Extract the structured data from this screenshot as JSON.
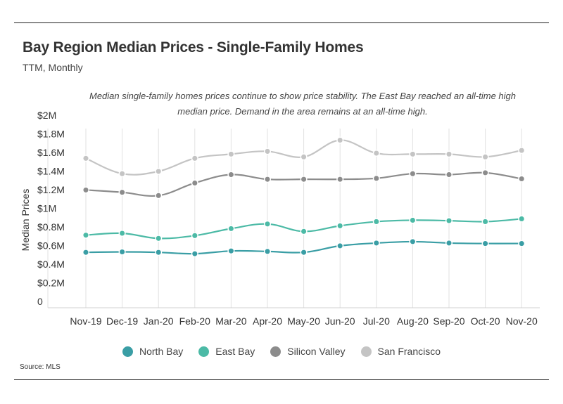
{
  "header": {
    "title": "Bay Region Median Prices - Single-Family Homes",
    "subtitle": "TTM, Monthly"
  },
  "annotation": "Median single-family homes prices continue to show price stability. The East Bay reached an all-time high median price. Demand in the area remains at an all-time high.",
  "source": "Source:  MLS",
  "chart_data": {
    "type": "line",
    "title": "Bay Region Median Prices - Single-Family Homes",
    "subtitle": "TTM, Monthly",
    "xlabel": "",
    "ylabel": "Median Prices",
    "ylim": [
      0,
      2000000
    ],
    "yticks": [
      0,
      200000,
      400000,
      600000,
      800000,
      1000000,
      1200000,
      1400000,
      1600000,
      1800000,
      2000000
    ],
    "ytick_labels": [
      "0",
      "$0.2M",
      "$0.4M",
      "$0.6M",
      "$0.8M",
      "$1M",
      "$1.2M",
      "$1.4M",
      "$1.6M",
      "$1.8M",
      "$2M"
    ],
    "x": [
      "Nov-19",
      "Dec-19",
      "Jan-20",
      "Feb-20",
      "Mar-20",
      "Apr-20",
      "May-20",
      "Jun-20",
      "Jul-20",
      "Aug-20",
      "Sep-20",
      "Oct-20",
      "Nov-20"
    ],
    "grid": "vertical",
    "legend_position": "bottom",
    "series": [
      {
        "name": "North Bay",
        "color": "#3a9ea5",
        "values": [
          595000,
          600000,
          595000,
          580000,
          610000,
          605000,
          595000,
          665000,
          695000,
          710000,
          695000,
          690000,
          690000
        ]
      },
      {
        "name": "East Bay",
        "color": "#4cbaa6",
        "values": [
          780000,
          800000,
          745000,
          775000,
          850000,
          900000,
          820000,
          880000,
          925000,
          940000,
          935000,
          925000,
          955000
        ]
      },
      {
        "name": "Silicon Valley",
        "color": "#8c8c8c",
        "values": [
          1265000,
          1240000,
          1205000,
          1340000,
          1430000,
          1380000,
          1380000,
          1380000,
          1390000,
          1440000,
          1430000,
          1450000,
          1385000
        ]
      },
      {
        "name": "San Francisco",
        "color": "#c4c4c4",
        "values": [
          1605000,
          1440000,
          1465000,
          1605000,
          1650000,
          1680000,
          1620000,
          1800000,
          1660000,
          1650000,
          1650000,
          1620000,
          1690000
        ]
      }
    ]
  }
}
